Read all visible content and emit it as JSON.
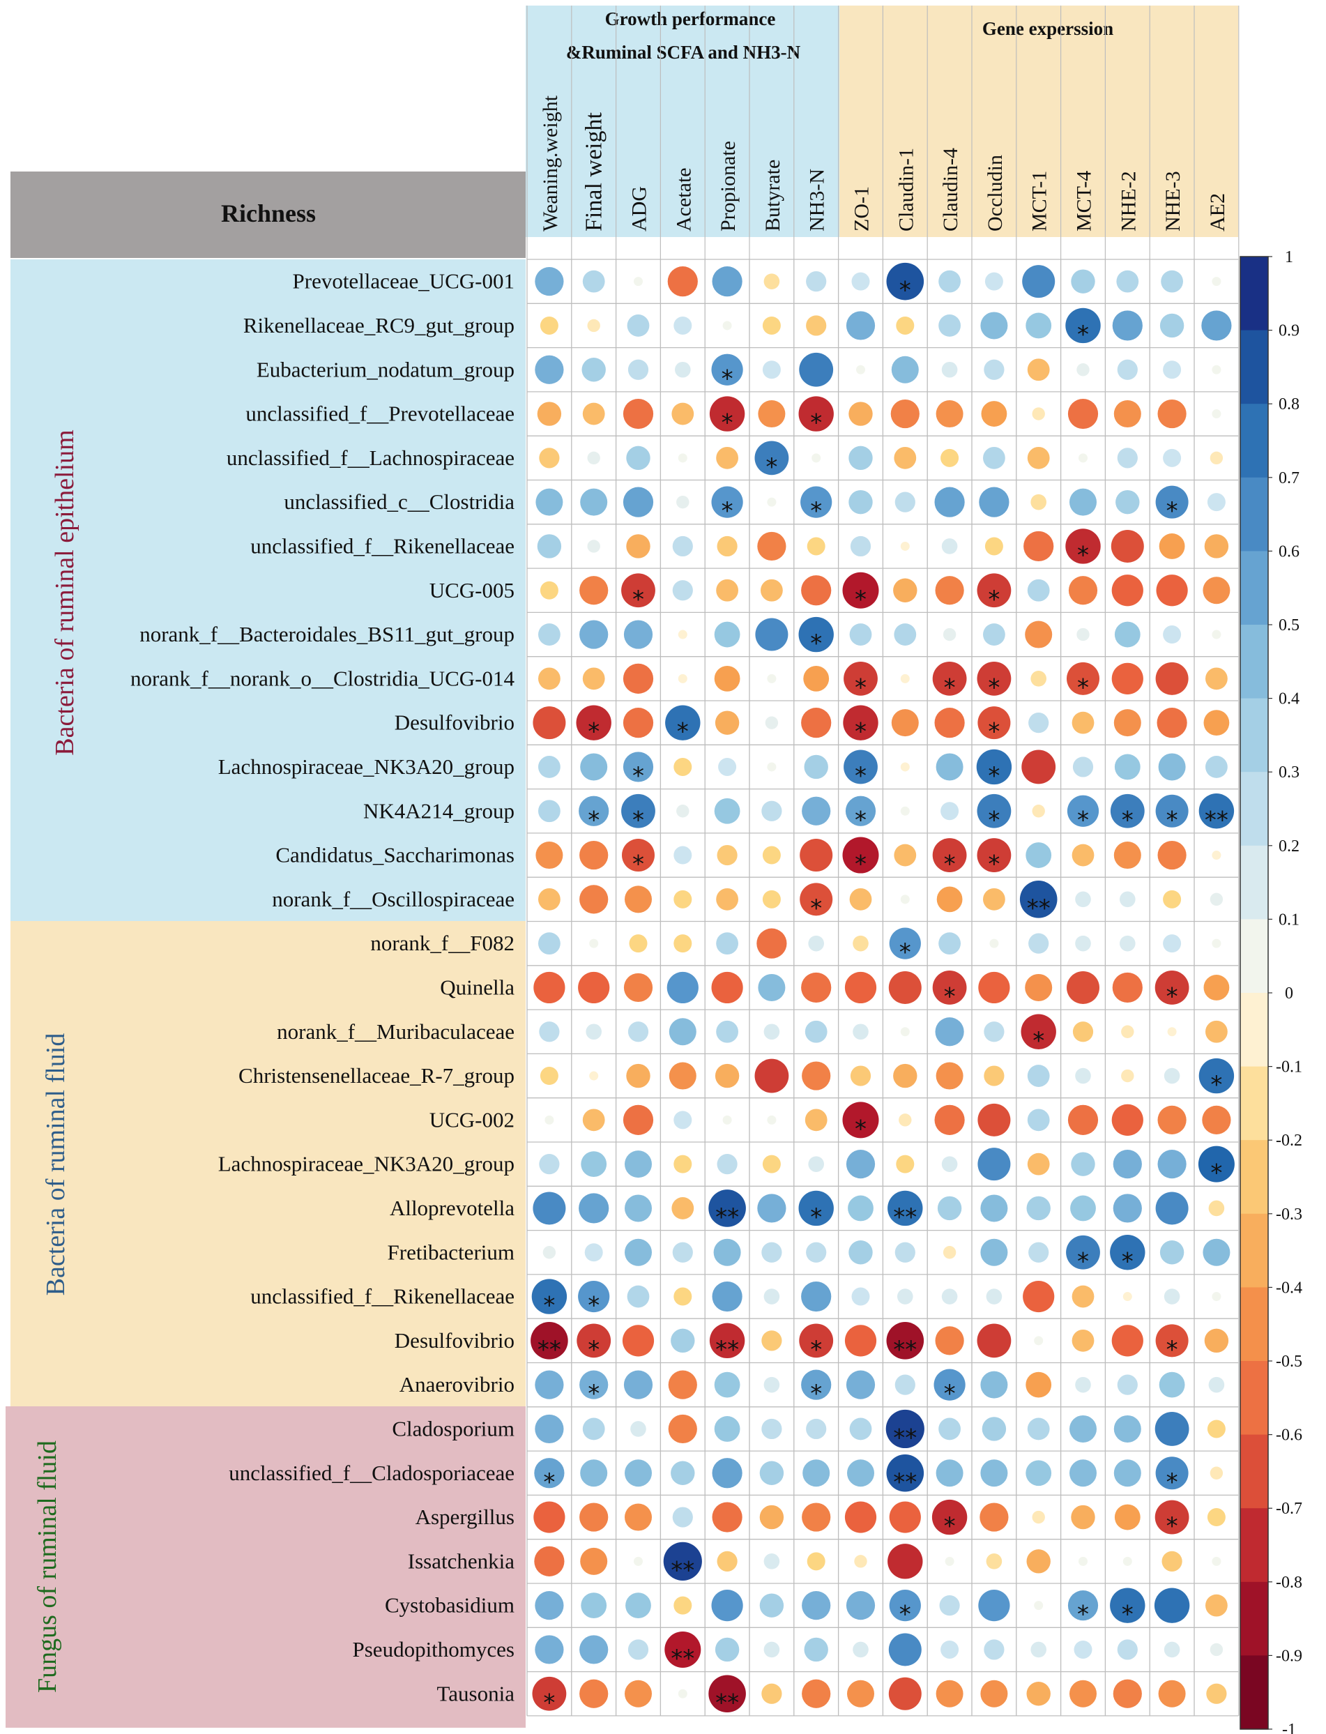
{
  "header": {
    "richness_label": "Richness",
    "group_growth_line1": "Growth performance",
    "group_growth_line2": "&Ruminal SCFA and NH3-N",
    "group_gene": "Gene experssion"
  },
  "sections": [
    {
      "name": "Bacteria of ruminal epithelium",
      "rows": 15,
      "color": "#8b1a3a"
    },
    {
      "name": "Bacteria of ruminal fluid",
      "rows": 11,
      "color": "#2e5d8a"
    },
    {
      "name": "Fungus of ruminal fluid",
      "rows": 7,
      "color": "#1e6a1e"
    }
  ],
  "colors": {
    "blue_panel": "#cbe8f2",
    "tan_panel": "#f9e6bf",
    "pink_panel": "#e2bcc2",
    "gray_header": "#a3a0a0"
  },
  "chart_data": {
    "type": "heatmap",
    "title": "",
    "columns": [
      "Weaning.weight",
      "Final weight",
      "ADG",
      "Acetate",
      "Propionate",
      "Butyrate",
      "NH3-N",
      "ZO-1",
      "Claudin-1",
      "Claudin-4",
      "Occludin",
      "MCT-1",
      "MCT-4",
      "NHE-2",
      "NHE-3",
      "AE2"
    ],
    "rows": [
      "Prevotellaceae_UCG-001",
      "Rikenellaceae_RC9_gut_group",
      "Eubacterium_nodatum_group",
      "unclassified_f__Prevotellaceae",
      "unclassified_f__Lachnospiraceae",
      "unclassified_c__Clostridia",
      "unclassified_f__Rikenellaceae",
      "UCG-005",
      "norank_f__Bacteroidales_BS11_gut_group",
      "norank_f__norank_o__Clostridia_UCG-014",
      "Desulfovibrio",
      "Lachnospiraceae_NK3A20_group",
      "NK4A214_group",
      "Candidatus_Saccharimonas",
      "norank_f__Oscillospiraceae",
      "norank_f__F082",
      "Quinella",
      "norank_f__Muribaculaceae",
      "Christensenellaceae_R-7_group",
      "UCG-002",
      "Lachnospiraceae_NK3A20_group",
      "Alloprevotella",
      "Fretibacterium",
      "unclassified_f__Rikenellaceae",
      "Desulfovibrio",
      "Anaerovibrio",
      "Cladosporium",
      "unclassified_f__Cladosporiaceae",
      "Aspergillus",
      "Issatchenkia",
      "Cystobasidium",
      "Pseudopithomyces",
      "Tausonia"
    ],
    "values": [
      [
        0.5,
        0.3,
        0.05,
        -0.55,
        0.55,
        -0.15,
        0.25,
        0.2,
        0.85,
        0.3,
        0.2,
        0.65,
        0.35,
        0.3,
        0.3,
        0.05
      ],
      [
        -0.2,
        -0.1,
        0.3,
        0.2,
        0.05,
        -0.2,
        -0.25,
        0.5,
        -0.2,
        0.3,
        0.45,
        0.4,
        0.75,
        0.55,
        0.35,
        0.55
      ],
      [
        0.5,
        0.35,
        0.25,
        0.15,
        0.6,
        0.2,
        0.7,
        0.05,
        0.45,
        0.15,
        0.25,
        -0.3,
        0.1,
        0.25,
        0.2,
        0.05
      ],
      [
        -0.35,
        -0.3,
        -0.55,
        -0.3,
        -0.75,
        -0.45,
        -0.75,
        -0.35,
        -0.5,
        -0.45,
        -0.4,
        -0.1,
        -0.55,
        -0.45,
        -0.5,
        0.05
      ],
      [
        -0.25,
        0.1,
        0.35,
        0.05,
        -0.3,
        0.7,
        0.05,
        0.35,
        -0.3,
        -0.2,
        0.3,
        -0.3,
        0.05,
        0.25,
        0.2,
        -0.1
      ],
      [
        0.45,
        0.45,
        0.55,
        0.1,
        0.6,
        0.05,
        0.6,
        0.35,
        0.25,
        0.55,
        0.55,
        -0.15,
        0.45,
        0.35,
        0.65,
        0.2
      ],
      [
        0.35,
        0.1,
        -0.35,
        0.25,
        -0.25,
        -0.5,
        -0.2,
        0.25,
        -0.05,
        0.15,
        -0.2,
        -0.55,
        -0.75,
        -0.65,
        -0.4,
        -0.35
      ],
      [
        -0.2,
        -0.5,
        -0.7,
        0.25,
        -0.3,
        -0.3,
        -0.55,
        -0.8,
        -0.35,
        -0.5,
        -0.7,
        0.3,
        -0.5,
        -0.6,
        -0.6,
        -0.45
      ],
      [
        0.3,
        0.5,
        0.5,
        -0.05,
        0.4,
        0.65,
        0.75,
        0.3,
        0.3,
        0.1,
        0.3,
        -0.45,
        0.1,
        0.4,
        0.2,
        0.05
      ],
      [
        -0.3,
        -0.3,
        -0.55,
        -0.05,
        -0.4,
        0.05,
        -0.4,
        -0.7,
        -0.05,
        -0.7,
        -0.7,
        -0.15,
        -0.65,
        -0.6,
        -0.65,
        -0.3
      ],
      [
        -0.65,
        -0.75,
        -0.55,
        0.75,
        -0.35,
        0.1,
        -0.55,
        -0.75,
        -0.45,
        -0.55,
        -0.65,
        0.25,
        -0.3,
        -0.45,
        -0.55,
        -0.4
      ],
      [
        0.3,
        0.45,
        0.55,
        -0.2,
        0.2,
        0.05,
        0.35,
        0.7,
        -0.05,
        0.45,
        0.75,
        -0.7,
        0.25,
        0.4,
        0.45,
        0.3
      ],
      [
        0.3,
        0.55,
        0.7,
        0.1,
        0.4,
        0.25,
        0.5,
        0.55,
        0.05,
        0.2,
        0.7,
        -0.1,
        0.6,
        0.7,
        0.65,
        0.75
      ],
      [
        -0.45,
        -0.5,
        -0.65,
        0.2,
        -0.25,
        -0.2,
        -0.65,
        -0.8,
        -0.3,
        -0.7,
        -0.7,
        0.4,
        -0.3,
        -0.45,
        -0.5,
        -0.05
      ],
      [
        -0.3,
        -0.5,
        -0.45,
        -0.2,
        -0.3,
        -0.2,
        -0.65,
        -0.3,
        0.05,
        -0.4,
        -0.3,
        0.85,
        0.15,
        0.15,
        -0.2,
        0.1
      ],
      [
        0.3,
        0.05,
        -0.2,
        -0.2,
        0.3,
        -0.55,
        0.15,
        -0.15,
        0.6,
        0.3,
        0.05,
        0.25,
        0.15,
        0.15,
        0.2,
        0.05
      ],
      [
        -0.6,
        -0.6,
        -0.5,
        0.6,
        -0.6,
        0.45,
        -0.55,
        -0.6,
        -0.65,
        -0.7,
        -0.6,
        -0.45,
        -0.65,
        -0.55,
        -0.7,
        -0.4
      ],
      [
        0.25,
        0.15,
        0.25,
        0.45,
        0.3,
        0.15,
        0.3,
        0.15,
        0.05,
        0.5,
        0.25,
        -0.75,
        -0.25,
        -0.1,
        -0.05,
        -0.3
      ],
      [
        -0.2,
        -0.05,
        -0.35,
        -0.45,
        -0.35,
        -0.7,
        -0.5,
        -0.25,
        -0.35,
        -0.45,
        -0.25,
        0.3,
        0.15,
        -0.1,
        0.15,
        0.75
      ],
      [
        0.05,
        -0.3,
        -0.55,
        0.2,
        0.05,
        0.05,
        -0.3,
        -0.8,
        -0.1,
        -0.55,
        -0.65,
        0.3,
        -0.55,
        -0.6,
        -0.5,
        -0.5
      ],
      [
        0.25,
        0.4,
        0.45,
        -0.2,
        0.25,
        -0.2,
        0.15,
        0.5,
        -0.2,
        0.15,
        0.65,
        -0.3,
        0.35,
        0.5,
        0.5,
        0.8
      ],
      [
        0.65,
        0.55,
        0.45,
        -0.3,
        0.85,
        0.5,
        0.75,
        0.4,
        0.75,
        0.35,
        0.45,
        0.35,
        0.4,
        0.5,
        0.65,
        -0.15
      ],
      [
        0.1,
        0.2,
        0.45,
        0.25,
        0.45,
        0.25,
        0.25,
        0.35,
        0.25,
        -0.1,
        0.45,
        0.25,
        0.7,
        0.75,
        0.35,
        0.45
      ],
      [
        0.75,
        0.6,
        0.3,
        -0.2,
        0.55,
        0.15,
        0.55,
        0.2,
        0.15,
        0.15,
        0.15,
        -0.6,
        -0.3,
        -0.05,
        0.15,
        0.05
      ],
      [
        -0.85,
        -0.7,
        -0.6,
        0.35,
        -0.75,
        -0.25,
        -0.7,
        -0.6,
        -0.85,
        -0.5,
        -0.7,
        0.05,
        -0.3,
        -0.6,
        -0.65,
        -0.35
      ],
      [
        0.5,
        0.5,
        0.5,
        -0.5,
        0.4,
        0.15,
        0.55,
        0.5,
        0.25,
        0.6,
        0.45,
        -0.4,
        0.15,
        0.25,
        0.4,
        0.15
      ],
      [
        0.5,
        0.3,
        0.15,
        -0.5,
        0.4,
        0.25,
        0.25,
        0.3,
        0.9,
        0.3,
        0.35,
        0.3,
        0.45,
        0.45,
        0.7,
        -0.2
      ],
      [
        0.55,
        0.45,
        0.45,
        0.35,
        0.55,
        0.35,
        0.45,
        0.45,
        0.85,
        0.45,
        0.45,
        0.4,
        0.45,
        0.45,
        0.65,
        -0.1
      ],
      [
        -0.6,
        -0.5,
        -0.45,
        0.25,
        -0.55,
        -0.35,
        -0.5,
        -0.6,
        -0.6,
        -0.75,
        -0.5,
        -0.1,
        -0.35,
        -0.4,
        -0.7,
        -0.2
      ],
      [
        -0.55,
        -0.45,
        0.05,
        0.9,
        -0.25,
        0.15,
        -0.2,
        -0.1,
        -0.75,
        0.05,
        -0.15,
        -0.35,
        0.05,
        0.05,
        -0.25,
        0.05
      ],
      [
        0.5,
        0.4,
        0.4,
        -0.2,
        0.6,
        0.35,
        0.5,
        0.5,
        0.6,
        0.25,
        0.6,
        0.05,
        0.55,
        0.75,
        0.75,
        -0.3
      ],
      [
        0.5,
        0.5,
        0.25,
        -0.8,
        0.35,
        0.15,
        0.35,
        0.15,
        0.65,
        0.2,
        0.25,
        0.15,
        0.2,
        0.25,
        0.15,
        0.1
      ],
      [
        -0.7,
        -0.5,
        -0.45,
        0.05,
        -0.85,
        -0.25,
        -0.5,
        -0.45,
        -0.65,
        -0.45,
        -0.45,
        -0.35,
        -0.45,
        -0.5,
        -0.45,
        -0.25
      ]
    ],
    "significance": [
      [
        "",
        "",
        "",
        "",
        "",
        "",
        "",
        "",
        "*",
        "",
        "",
        "",
        "",
        "",
        "",
        ""
      ],
      [
        "",
        "",
        "",
        "",
        "",
        "",
        "",
        "",
        "",
        "",
        "",
        "",
        "*",
        "",
        "",
        ""
      ],
      [
        "",
        "",
        "",
        "",
        "*",
        "",
        "",
        "",
        "",
        "",
        "",
        "",
        "",
        "",
        "",
        ""
      ],
      [
        "",
        "",
        "",
        "",
        "*",
        "",
        "*",
        "",
        "",
        "",
        "",
        "",
        "",
        "",
        "",
        ""
      ],
      [
        "",
        "",
        "",
        "",
        "",
        "*",
        "",
        "",
        "",
        "",
        "",
        "",
        "",
        "",
        "",
        ""
      ],
      [
        "",
        "",
        "",
        "",
        "*",
        "",
        "*",
        "",
        "",
        "",
        "",
        "",
        "",
        "",
        "*",
        ""
      ],
      [
        "",
        "",
        "",
        "",
        "",
        "",
        "",
        "",
        "",
        "",
        "",
        "",
        "*",
        "",
        "",
        ""
      ],
      [
        "",
        "",
        "*",
        "",
        "",
        "",
        "",
        "*",
        "",
        "",
        "*",
        "",
        "",
        "",
        "",
        ""
      ],
      [
        "",
        "",
        "",
        "",
        "",
        "",
        "*",
        "",
        "",
        "",
        "",
        "",
        "",
        "",
        "",
        ""
      ],
      [
        "",
        "",
        "",
        "",
        "",
        "",
        "",
        "*",
        "",
        "*",
        "*",
        "",
        "*",
        "",
        "",
        ""
      ],
      [
        "",
        "*",
        "",
        "*",
        "",
        "",
        "",
        "*",
        "",
        "",
        "*",
        "",
        "",
        "",
        "",
        ""
      ],
      [
        "",
        "",
        "*",
        "",
        "",
        "",
        "",
        "*",
        "",
        "",
        "*",
        "",
        "",
        "",
        "",
        ""
      ],
      [
        "",
        "*",
        "*",
        "",
        "",
        "",
        "",
        "*",
        "",
        "",
        "*",
        "",
        "*",
        "*",
        "*",
        "**"
      ],
      [
        "",
        "",
        "*",
        "",
        "",
        "",
        "",
        "*",
        "",
        "*",
        "*",
        "",
        "",
        "",
        "",
        ""
      ],
      [
        "",
        "",
        "",
        "",
        "",
        "",
        "*",
        "",
        "",
        "",
        "",
        "**",
        "",
        "",
        "",
        ""
      ],
      [
        "",
        "",
        "",
        "",
        "",
        "",
        "",
        "",
        "*",
        "",
        "",
        "",
        "",
        "",
        "",
        ""
      ],
      [
        "",
        "",
        "",
        "",
        "",
        "",
        "",
        "",
        "",
        "*",
        "",
        "",
        "",
        "",
        "*",
        ""
      ],
      [
        "",
        "",
        "",
        "",
        "",
        "",
        "",
        "",
        "",
        "",
        "",
        "*",
        "",
        "",
        "",
        ""
      ],
      [
        "",
        "",
        "",
        "",
        "",
        "",
        "",
        "",
        "",
        "",
        "",
        "",
        "",
        "",
        "",
        "*"
      ],
      [
        "",
        "",
        "",
        "",
        "",
        "",
        "",
        "*",
        "",
        "",
        "",
        "",
        "",
        "",
        "",
        ""
      ],
      [
        "",
        "",
        "",
        "",
        "",
        "",
        "",
        "",
        "",
        "",
        "",
        "",
        "",
        "",
        "",
        "*"
      ],
      [
        "",
        "",
        "",
        "",
        "**",
        "",
        "*",
        "",
        "**",
        "",
        "",
        "",
        "",
        "",
        "",
        ""
      ],
      [
        "",
        "",
        "",
        "",
        "",
        "",
        "",
        "",
        "",
        "",
        "",
        "",
        "*",
        "*",
        "",
        ""
      ],
      [
        "*",
        "*",
        "",
        "",
        "",
        "",
        "",
        "",
        "",
        "",
        "",
        "",
        "",
        "",
        "",
        ""
      ],
      [
        "**",
        "*",
        "",
        "",
        "**",
        "",
        "*",
        "",
        "**",
        "",
        "",
        "",
        "",
        "",
        "*",
        ""
      ],
      [
        "",
        "*",
        "",
        "",
        "",
        "",
        "*",
        "",
        "",
        "*",
        "",
        "",
        "",
        "",
        "",
        ""
      ],
      [
        "",
        "",
        "",
        "",
        "",
        "",
        "",
        "",
        "**",
        "",
        "",
        "",
        "",
        "",
        "",
        ""
      ],
      [
        "*",
        "",
        "",
        "",
        "",
        "",
        "",
        "",
        "**",
        "",
        "",
        "",
        "",
        "",
        "*",
        ""
      ],
      [
        "",
        "",
        "",
        "",
        "",
        "",
        "",
        "",
        "",
        "*",
        "",
        "",
        "",
        "",
        "*",
        ""
      ],
      [
        "",
        "",
        "",
        "**",
        "",
        "",
        "",
        "",
        "",
        "",
        "",
        "",
        "",
        "",
        "",
        ""
      ],
      [
        "",
        "",
        "",
        "",
        "",
        "",
        "",
        "",
        "*",
        "",
        "",
        "",
        "*",
        "*",
        "",
        ""
      ],
      [
        "",
        "",
        "",
        "**",
        "",
        "",
        "",
        "",
        "",
        "",
        "",
        "",
        "",
        "",
        "",
        ""
      ],
      [
        "*",
        "",
        "",
        "",
        "**",
        "",
        "",
        "",
        "",
        "",
        "",
        "",
        "",
        "",
        "",
        ""
      ]
    ],
    "color_scale": {
      "min": -1,
      "max": 1,
      "ticks": [
        "1",
        "0.9",
        "0.8",
        "0.7",
        "0.6",
        "0.5",
        "0.4",
        "0.3",
        "0.2",
        "0.1",
        "0",
        "-0.1",
        "-0.2",
        "-0.3",
        "-0.4",
        "-0.5",
        "-0.6",
        "-0.7",
        "-0.8",
        "-0.9",
        "-1"
      ]
    }
  }
}
